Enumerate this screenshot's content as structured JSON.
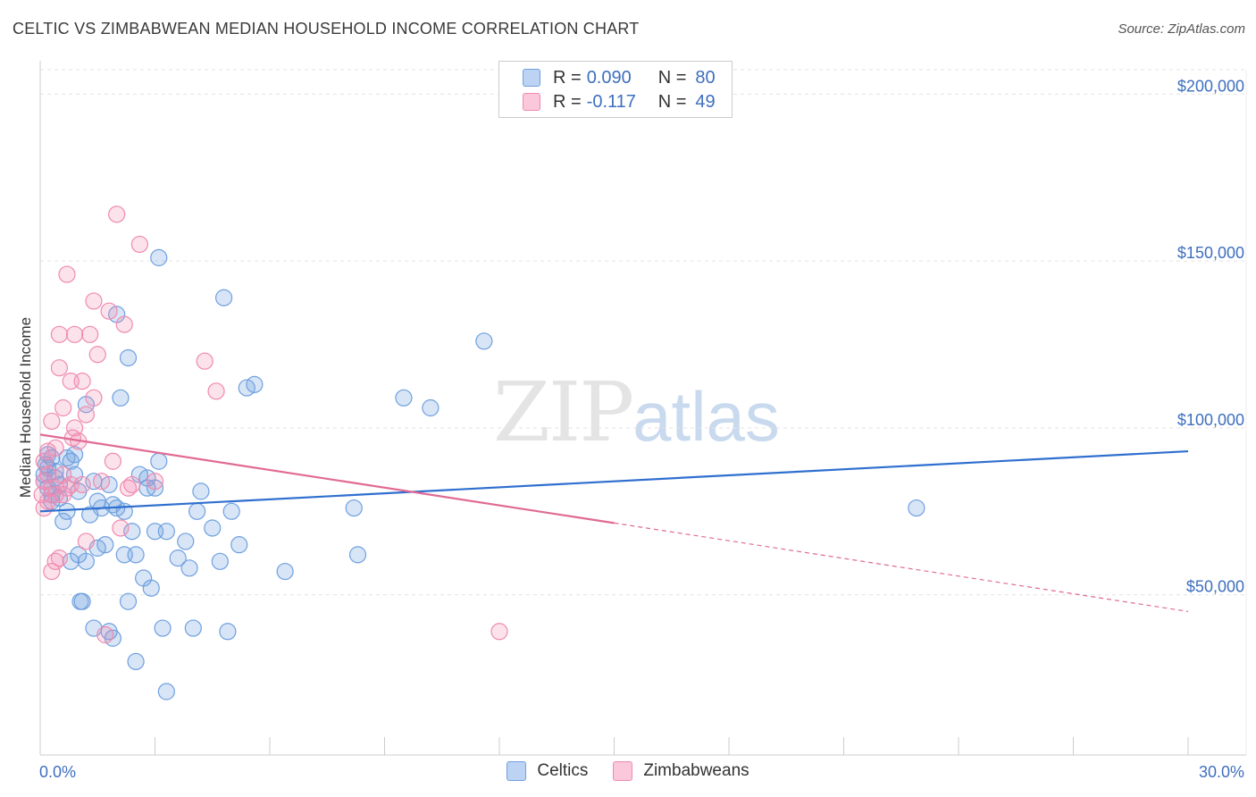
{
  "title": "CELTIC VS ZIMBABWEAN MEDIAN HOUSEHOLD INCOME CORRELATION CHART",
  "source": "Source: ZipAtlas.com",
  "watermark": {
    "zip": "ZIP",
    "atlas": "atlas"
  },
  "legend": {
    "rows": [
      {
        "r_label": "R =",
        "r_value": "0.090",
        "n_label": "N =",
        "n_value": "80",
        "color": "#6fa0e0"
      },
      {
        "r_label": "R =",
        "r_value": "-0.117",
        "n_label": "N =",
        "n_value": "49",
        "color": "#f08ab0"
      }
    ]
  },
  "bottom_legend": [
    {
      "label": "Celtics",
      "color": "#6fa0e0"
    },
    {
      "label": "Zimbabweans",
      "color": "#f08ab0"
    }
  ],
  "chart_data": {
    "type": "scatter",
    "title": "CELTIC VS ZIMBABWEAN MEDIAN HOUSEHOLD INCOME CORRELATION CHART",
    "xlabel": "",
    "ylabel": "Median Household Income",
    "xlim": [
      0,
      30
    ],
    "ylim": [
      2000,
      210000
    ],
    "x_tick_labels": [
      "0.0%",
      "30.0%"
    ],
    "y_ticks": [
      50000,
      100000,
      150000,
      200000
    ],
    "y_tick_labels": [
      "$50,000",
      "$100,000",
      "$150,000",
      "$200,000"
    ],
    "grid": true,
    "series": [
      {
        "name": "Celtics",
        "color": "#6fa0e0",
        "line_color": "#2f6fcf",
        "r": 0.09,
        "n": 80,
        "trend": {
          "x": [
            0,
            30
          ],
          "y": [
            75000,
            93000
          ],
          "dashed_from": null
        },
        "points": [
          [
            0.1,
            86000
          ],
          [
            0.1,
            84000
          ],
          [
            0.2,
            88000
          ],
          [
            0.2,
            82000
          ],
          [
            0.2,
            92000
          ],
          [
            0.3,
            91000
          ],
          [
            0.3,
            80000
          ],
          [
            0.3,
            78000
          ],
          [
            0.4,
            87000
          ],
          [
            0.4,
            85000
          ],
          [
            0.5,
            79000
          ],
          [
            0.5,
            83000
          ],
          [
            0.6,
            72000
          ],
          [
            0.7,
            91000
          ],
          [
            0.7,
            75000
          ],
          [
            0.8,
            90000
          ],
          [
            0.8,
            60000
          ],
          [
            0.9,
            92000
          ],
          [
            0.9,
            86000
          ],
          [
            1.0,
            62000
          ],
          [
            1.0,
            81000
          ],
          [
            1.1,
            48000
          ],
          [
            1.2,
            60000
          ],
          [
            1.2,
            107000
          ],
          [
            1.3,
            74000
          ],
          [
            1.4,
            40000
          ],
          [
            1.4,
            84000
          ],
          [
            1.5,
            64000
          ],
          [
            1.5,
            78000
          ],
          [
            1.6,
            76000
          ],
          [
            1.7,
            65000
          ],
          [
            1.8,
            39000
          ],
          [
            1.8,
            83000
          ],
          [
            1.9,
            37000
          ],
          [
            1.9,
            77000
          ],
          [
            2.0,
            134000
          ],
          [
            2.0,
            76000
          ],
          [
            2.1,
            109000
          ],
          [
            2.2,
            75000
          ],
          [
            2.2,
            62000
          ],
          [
            2.3,
            121000
          ],
          [
            2.3,
            48000
          ],
          [
            2.4,
            69000
          ],
          [
            2.5,
            30000
          ],
          [
            2.5,
            62000
          ],
          [
            2.6,
            86000
          ],
          [
            2.7,
            55000
          ],
          [
            2.8,
            85000
          ],
          [
            2.8,
            82000
          ],
          [
            2.9,
            52000
          ],
          [
            3.0,
            69000
          ],
          [
            3.0,
            82000
          ],
          [
            3.1,
            90000
          ],
          [
            3.1,
            151000
          ],
          [
            3.2,
            40000
          ],
          [
            3.3,
            69000
          ],
          [
            3.3,
            21000
          ],
          [
            3.6,
            61000
          ],
          [
            3.8,
            66000
          ],
          [
            3.9,
            58000
          ],
          [
            4.0,
            40000
          ],
          [
            4.1,
            75000
          ],
          [
            4.2,
            81000
          ],
          [
            4.5,
            70000
          ],
          [
            4.7,
            60000
          ],
          [
            4.8,
            139000
          ],
          [
            4.9,
            39000
          ],
          [
            5.0,
            75000
          ],
          [
            5.2,
            65000
          ],
          [
            5.4,
            112000
          ],
          [
            5.6,
            113000
          ],
          [
            6.4,
            57000
          ],
          [
            8.2,
            76000
          ],
          [
            8.3,
            62000
          ],
          [
            9.5,
            109000
          ],
          [
            10.2,
            106000
          ],
          [
            11.6,
            126000
          ],
          [
            22.9,
            76000
          ],
          [
            0.15,
            89000
          ],
          [
            1.05,
            48000
          ]
        ]
      },
      {
        "name": "Zimbabweans",
        "color": "#f08ab0",
        "line_color": "#e06a94",
        "r": -0.117,
        "n": 49,
        "trend": {
          "x": [
            0,
            30
          ],
          "y": [
            98000,
            45000
          ],
          "dashed_from": 15
        },
        "points": [
          [
            0.05,
            80000
          ],
          [
            0.1,
            76000
          ],
          [
            0.1,
            84000
          ],
          [
            0.1,
            90000
          ],
          [
            0.2,
            93000
          ],
          [
            0.2,
            78000
          ],
          [
            0.2,
            86000
          ],
          [
            0.3,
            102000
          ],
          [
            0.3,
            82000
          ],
          [
            0.3,
            57000
          ],
          [
            0.4,
            80000
          ],
          [
            0.4,
            60000
          ],
          [
            0.4,
            94000
          ],
          [
            0.5,
            128000
          ],
          [
            0.5,
            118000
          ],
          [
            0.5,
            61000
          ],
          [
            0.6,
            106000
          ],
          [
            0.6,
            80000
          ],
          [
            0.6,
            86000
          ],
          [
            0.7,
            146000
          ],
          [
            0.7,
            82000
          ],
          [
            0.8,
            114000
          ],
          [
            0.8,
            83000
          ],
          [
            0.9,
            128000
          ],
          [
            0.9,
            100000
          ],
          [
            1.0,
            96000
          ],
          [
            1.1,
            114000
          ],
          [
            1.1,
            83000
          ],
          [
            1.2,
            66000
          ],
          [
            1.2,
            104000
          ],
          [
            1.3,
            128000
          ],
          [
            1.4,
            109000
          ],
          [
            1.4,
            138000
          ],
          [
            1.5,
            122000
          ],
          [
            1.6,
            84000
          ],
          [
            1.7,
            38000
          ],
          [
            1.8,
            135000
          ],
          [
            1.9,
            90000
          ],
          [
            2.0,
            164000
          ],
          [
            2.1,
            70000
          ],
          [
            2.2,
            131000
          ],
          [
            2.3,
            82000
          ],
          [
            2.4,
            83000
          ],
          [
            2.6,
            155000
          ],
          [
            3.0,
            84000
          ],
          [
            4.3,
            120000
          ],
          [
            4.6,
            111000
          ],
          [
            12.0,
            39000
          ],
          [
            0.85,
            97000
          ]
        ]
      }
    ]
  }
}
